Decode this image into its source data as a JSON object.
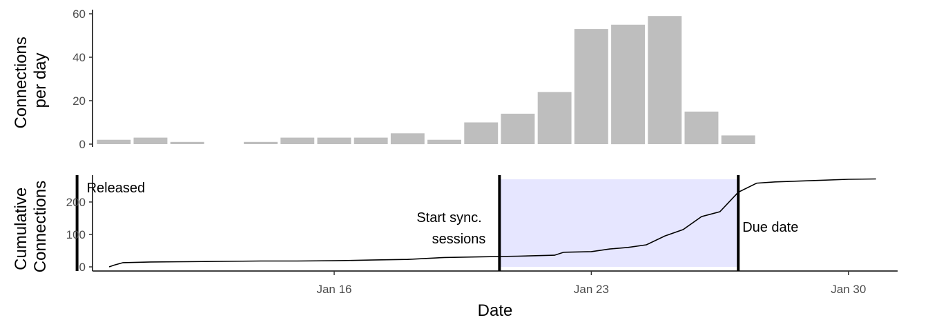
{
  "chart_data": [
    {
      "type": "bar",
      "ylabel_lines": [
        "Connections",
        "per day"
      ],
      "ylim": [
        0,
        60
      ],
      "yticks": [
        0,
        20,
        40,
        60
      ],
      "grid": false,
      "bar_color": "#bebebe",
      "dates": [
        "2023-01-10",
        "2023-01-11",
        "2023-01-12",
        "2023-01-13",
        "2023-01-14",
        "2023-01-15",
        "2023-01-16",
        "2023-01-17",
        "2023-01-18",
        "2023-01-19",
        "2023-01-20",
        "2023-01-21",
        "2023-01-22",
        "2023-01-23",
        "2023-01-24",
        "2023-01-25",
        "2023-01-26",
        "2023-01-27",
        "2023-01-28",
        "2023-01-29"
      ],
      "values": [
        2,
        3,
        1,
        0,
        1,
        3,
        3,
        3,
        5,
        2,
        10,
        14,
        24,
        53,
        55,
        59,
        15,
        4,
        null,
        null
      ]
    },
    {
      "type": "line",
      "ylabel_lines": [
        "Cumulative",
        "Connections"
      ],
      "xlabel": "Date",
      "ylim": [
        0,
        270
      ],
      "yticks": [
        0,
        100,
        200
      ],
      "xticks": [
        {
          "date": "2023-01-16",
          "label": "Jan 16"
        },
        {
          "date": "2023-01-23",
          "label": "Jan 23"
        },
        {
          "date": "2023-01-30",
          "label": "Jan 30"
        }
      ],
      "grid": false,
      "line_color": "#000000",
      "shade_color": "#e6e6ff",
      "shaded_region": {
        "start": "2023-01-20 12:00",
        "end": "2023-01-27 00:00"
      },
      "vlines": [
        {
          "date": "2023-01-09 00:00",
          "label": "Released"
        },
        {
          "date": "2023-01-20 12:00",
          "label_lines": [
            "Start sync.",
            "sessions"
          ]
        },
        {
          "date": "2023-01-27 00:00",
          "label": "Due date"
        }
      ],
      "points": [
        {
          "x": "2023-01-09 21:00",
          "y": 0
        },
        {
          "x": "2023-01-10 00:00",
          "y": 5
        },
        {
          "x": "2023-01-10 06:00",
          "y": 13
        },
        {
          "x": "2023-01-11 00:00",
          "y": 15
        },
        {
          "x": "2023-01-12 00:00",
          "y": 16
        },
        {
          "x": "2023-01-13 00:00",
          "y": 17
        },
        {
          "x": "2023-01-14 00:00",
          "y": 18
        },
        {
          "x": "2023-01-15 00:00",
          "y": 18
        },
        {
          "x": "2023-01-16 00:00",
          "y": 19
        },
        {
          "x": "2023-01-17 00:00",
          "y": 21
        },
        {
          "x": "2023-01-18 00:00",
          "y": 23
        },
        {
          "x": "2023-01-18 12:00",
          "y": 26
        },
        {
          "x": "2023-01-19 00:00",
          "y": 29
        },
        {
          "x": "2023-01-20 00:00",
          "y": 31
        },
        {
          "x": "2023-01-21 00:00",
          "y": 33
        },
        {
          "x": "2023-01-22 00:00",
          "y": 36
        },
        {
          "x": "2023-01-22 06:00",
          "y": 45
        },
        {
          "x": "2023-01-23 00:00",
          "y": 47
        },
        {
          "x": "2023-01-23 12:00",
          "y": 55
        },
        {
          "x": "2023-01-24 00:00",
          "y": 60
        },
        {
          "x": "2023-01-24 12:00",
          "y": 68
        },
        {
          "x": "2023-01-25 00:00",
          "y": 95
        },
        {
          "x": "2023-01-25 12:00",
          "y": 115
        },
        {
          "x": "2023-01-26 00:00",
          "y": 155
        },
        {
          "x": "2023-01-26 12:00",
          "y": 170
        },
        {
          "x": "2023-01-27 00:00",
          "y": 230
        },
        {
          "x": "2023-01-27 12:00",
          "y": 258
        },
        {
          "x": "2023-01-28 00:00",
          "y": 262
        },
        {
          "x": "2023-01-29 00:00",
          "y": 266
        },
        {
          "x": "2023-01-30 00:00",
          "y": 270
        },
        {
          "x": "2023-01-30 18:00",
          "y": 271
        }
      ]
    }
  ]
}
